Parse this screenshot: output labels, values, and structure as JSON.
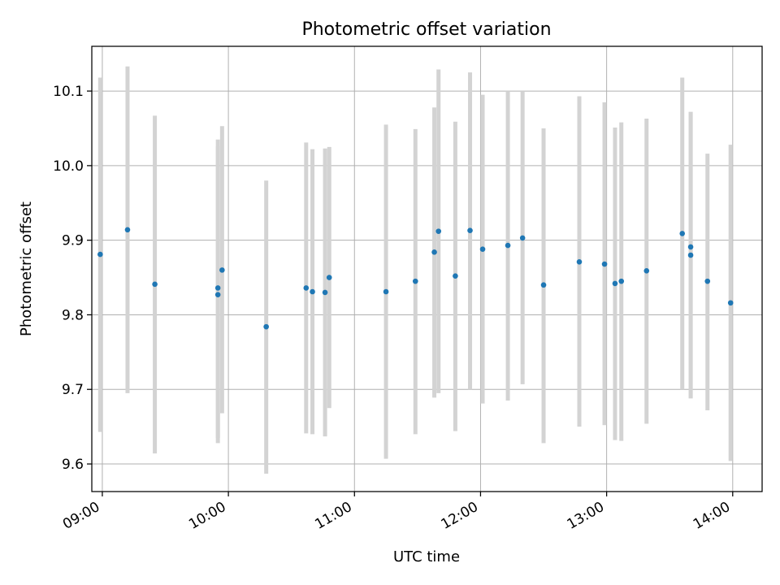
{
  "chart_data": {
    "type": "scatter",
    "title": "Photometric offset variation",
    "xlabel": "UTC time",
    "ylabel": "Photometric offset",
    "xlim": [
      "08:55",
      "14:14"
    ],
    "ylim": [
      9.563,
      10.16
    ],
    "grid": true,
    "x_ticks": [
      "09:00",
      "10:00",
      "11:00",
      "12:00",
      "13:00",
      "14:00"
    ],
    "y_ticks": [
      9.6,
      9.7,
      9.8,
      9.9,
      10.0,
      10.1
    ],
    "y_tick_labels": [
      "9.6",
      "9.7",
      "9.8",
      "9.9",
      "10.0",
      "10.1"
    ],
    "point_color": "#1f77b4",
    "errorbar_color": "#d3d3d3",
    "points": [
      {
        "time": "08:59",
        "y": 9.881,
        "y_low": 9.643,
        "y_high": 10.118
      },
      {
        "time": "09:12",
        "y": 9.914,
        "y_low": 9.695,
        "y_high": 10.133
      },
      {
        "time": "09:25",
        "y": 9.841,
        "y_low": 9.614,
        "y_high": 10.067
      },
      {
        "time": "09:55",
        "y": 9.836,
        "y_low": 9.635,
        "y_high": 10.035
      },
      {
        "time": "09:55",
        "y": 9.827,
        "y_low": 9.628,
        "y_high": 10.026
      },
      {
        "time": "09:57",
        "y": 9.86,
        "y_low": 9.668,
        "y_high": 10.053
      },
      {
        "time": "10:18",
        "y": 9.784,
        "y_low": 9.587,
        "y_high": 9.98
      },
      {
        "time": "10:37",
        "y": 9.836,
        "y_low": 9.641,
        "y_high": 10.031
      },
      {
        "time": "10:40",
        "y": 9.831,
        "y_low": 9.64,
        "y_high": 10.022
      },
      {
        "time": "10:46",
        "y": 9.83,
        "y_low": 9.637,
        "y_high": 10.023
      },
      {
        "time": "10:48",
        "y": 9.85,
        "y_low": 9.675,
        "y_high": 10.025
      },
      {
        "time": "11:15",
        "y": 9.831,
        "y_low": 9.607,
        "y_high": 10.055
      },
      {
        "time": "11:29",
        "y": 9.845,
        "y_low": 9.64,
        "y_high": 10.049
      },
      {
        "time": "11:38",
        "y": 9.884,
        "y_low": 9.689,
        "y_high": 10.078
      },
      {
        "time": "11:40",
        "y": 9.912,
        "y_low": 9.695,
        "y_high": 10.129
      },
      {
        "time": "11:48",
        "y": 9.852,
        "y_low": 9.644,
        "y_high": 10.059
      },
      {
        "time": "11:55",
        "y": 9.913,
        "y_low": 9.7,
        "y_high": 10.125
      },
      {
        "time": "12:01",
        "y": 9.888,
        "y_low": 9.681,
        "y_high": 10.095
      },
      {
        "time": "12:13",
        "y": 9.893,
        "y_low": 9.685,
        "y_high": 10.1
      },
      {
        "time": "12:20",
        "y": 9.903,
        "y_low": 9.707,
        "y_high": 10.099
      },
      {
        "time": "12:30",
        "y": 9.84,
        "y_low": 9.628,
        "y_high": 10.05
      },
      {
        "time": "12:47",
        "y": 9.871,
        "y_low": 9.65,
        "y_high": 10.093
      },
      {
        "time": "12:59",
        "y": 9.868,
        "y_low": 9.652,
        "y_high": 10.085
      },
      {
        "time": "13:04",
        "y": 9.842,
        "y_low": 9.632,
        "y_high": 10.051
      },
      {
        "time": "13:07",
        "y": 9.845,
        "y_low": 9.631,
        "y_high": 10.058
      },
      {
        "time": "13:19",
        "y": 9.859,
        "y_low": 9.654,
        "y_high": 10.063
      },
      {
        "time": "13:36",
        "y": 9.909,
        "y_low": 9.7,
        "y_high": 10.118
      },
      {
        "time": "13:40",
        "y": 9.891,
        "y_low": 9.688,
        "y_high": 10.072
      },
      {
        "time": "13:40",
        "y": 9.88,
        "y_low": 9.688,
        "y_high": 10.072
      },
      {
        "time": "13:48",
        "y": 9.845,
        "y_low": 9.672,
        "y_high": 10.016
      },
      {
        "time": "13:59",
        "y": 9.816,
        "y_low": 9.604,
        "y_high": 10.028
      }
    ]
  }
}
